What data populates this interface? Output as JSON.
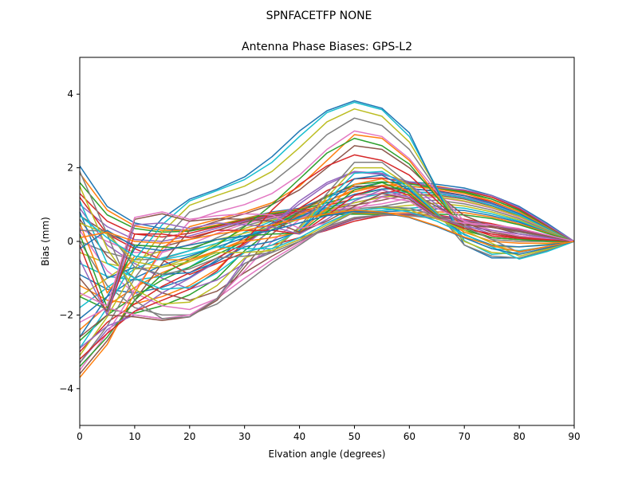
{
  "figure": {
    "suptitle": "SPNFACETFP      NONE"
  },
  "chart_data": {
    "type": "line",
    "title": "Antenna Phase Biases: GPS-L2",
    "xlabel": "Elvation angle (degrees)",
    "ylabel": "Bias (mm)",
    "xlim": [
      0,
      90
    ],
    "ylim": [
      -5,
      5
    ],
    "xticks": [
      0,
      10,
      20,
      30,
      40,
      50,
      60,
      70,
      80,
      90
    ],
    "yticks": [
      -4,
      -2,
      0,
      2,
      4
    ],
    "xtick_labels": [
      "0",
      "10",
      "20",
      "30",
      "40",
      "50",
      "60",
      "70",
      "80",
      "90"
    ],
    "ytick_labels": [
      "−4",
      "−2",
      "0",
      "2",
      "4"
    ],
    "grid": false,
    "legend": "none",
    "x": [
      0,
      5,
      10,
      15,
      20,
      25,
      30,
      35,
      40,
      45,
      50,
      55,
      60,
      65,
      70,
      75,
      80,
      85,
      90
    ],
    "series_colors": [
      "#1f77b4",
      "#ff7f0e",
      "#2ca02c",
      "#d62728",
      "#9467bd",
      "#8c564b",
      "#e377c2",
      "#7f7f7f",
      "#bcbd22",
      "#17becf"
    ],
    "series": [
      {
        "values": [
          2.05,
          0.95,
          0.5,
          0.35,
          0.3,
          0.42,
          0.62,
          0.8,
          0.9,
          1.2,
          1.45,
          1.6,
          1.62,
          1.55,
          1.45,
          1.25,
          0.95,
          0.5,
          0.0
        ]
      },
      {
        "values": [
          1.85,
          0.85,
          0.42,
          0.3,
          0.3,
          0.45,
          0.62,
          0.78,
          0.88,
          1.12,
          1.35,
          1.52,
          1.58,
          1.5,
          1.38,
          1.2,
          0.9,
          0.45,
          0.0
        ]
      },
      {
        "values": [
          1.6,
          0.72,
          0.35,
          0.25,
          0.28,
          0.42,
          0.6,
          0.75,
          0.86,
          1.05,
          1.25,
          1.42,
          1.5,
          1.45,
          1.32,
          1.15,
          0.85,
          0.42,
          0.0
        ]
      },
      {
        "values": [
          1.3,
          0.55,
          0.2,
          0.12,
          0.22,
          0.4,
          0.58,
          0.72,
          0.82,
          0.98,
          1.15,
          1.32,
          1.42,
          1.38,
          1.25,
          1.08,
          0.8,
          0.4,
          0.0
        ]
      },
      {
        "values": [
          1.0,
          0.4,
          0.05,
          0.0,
          0.15,
          0.36,
          0.55,
          0.7,
          0.8,
          0.92,
          1.05,
          1.22,
          1.35,
          1.32,
          1.2,
          1.02,
          0.75,
          0.38,
          0.0
        ]
      },
      {
        "values": [
          0.7,
          0.22,
          -0.1,
          -0.15,
          0.05,
          0.3,
          0.52,
          0.68,
          0.78,
          0.88,
          0.98,
          1.12,
          1.28,
          1.26,
          1.15,
          0.96,
          0.7,
          0.35,
          0.0
        ]
      },
      {
        "values": [
          0.35,
          0.0,
          -0.3,
          -0.3,
          -0.08,
          0.22,
          0.48,
          0.65,
          0.76,
          0.85,
          0.92,
          1.02,
          1.18,
          1.2,
          1.08,
          0.9,
          0.66,
          0.32,
          0.0
        ]
      },
      {
        "values": [
          0.0,
          -0.3,
          -0.5,
          -0.48,
          -0.25,
          0.1,
          0.42,
          0.62,
          0.74,
          0.82,
          0.88,
          0.95,
          1.08,
          1.12,
          1.02,
          0.85,
          0.62,
          0.3,
          0.0
        ]
      },
      {
        "values": [
          -0.3,
          -0.6,
          -0.75,
          -0.7,
          -0.45,
          -0.05,
          0.35,
          0.58,
          0.72,
          0.8,
          0.84,
          0.9,
          0.98,
          1.04,
          0.96,
          0.8,
          0.58,
          0.28,
          0.0
        ]
      },
      {
        "values": [
          -0.6,
          -0.95,
          -1.05,
          -0.95,
          -0.7,
          -0.25,
          0.25,
          0.55,
          0.7,
          0.78,
          0.8,
          0.84,
          0.9,
          0.96,
          0.9,
          0.75,
          0.55,
          0.26,
          0.0
        ]
      },
      {
        "values": [
          -0.9,
          -1.3,
          -1.4,
          -1.25,
          -0.98,
          -0.5,
          0.12,
          0.5,
          0.68,
          0.76,
          0.78,
          0.8,
          0.84,
          0.88,
          0.84,
          0.7,
          0.52,
          0.25,
          0.0
        ]
      },
      {
        "values": [
          -1.2,
          -1.6,
          -1.7,
          -1.5,
          -1.2,
          -0.75,
          -0.05,
          0.42,
          0.66,
          0.74,
          0.76,
          0.76,
          0.78,
          0.8,
          0.78,
          0.66,
          0.48,
          0.24,
          0.0
        ]
      },
      {
        "values": [
          -1.5,
          -1.85,
          -1.95,
          -1.75,
          -1.45,
          -1.0,
          -0.25,
          0.32,
          0.62,
          0.72,
          0.74,
          0.73,
          0.72,
          0.74,
          0.72,
          0.62,
          0.45,
          0.22,
          0.0
        ]
      },
      {
        "values": [
          1.2,
          0.2,
          -0.2,
          -0.5,
          -0.9,
          -0.6,
          -0.3,
          -0.1,
          0.1,
          0.3,
          0.55,
          0.7,
          0.75,
          0.72,
          0.6,
          0.48,
          0.32,
          0.16,
          0.0
        ]
      },
      {
        "values": [
          0.9,
          -0.1,
          -0.6,
          -1.0,
          -1.3,
          -1.05,
          -0.6,
          -0.25,
          0.05,
          0.32,
          0.6,
          0.72,
          0.74,
          0.7,
          0.58,
          0.45,
          0.3,
          0.15,
          0.0
        ]
      },
      {
        "values": [
          0.6,
          -0.4,
          -1.0,
          -1.4,
          -1.6,
          -1.35,
          -0.85,
          -0.4,
          0.0,
          0.35,
          0.62,
          0.72,
          0.72,
          0.68,
          0.55,
          0.42,
          0.28,
          0.14,
          0.0
        ]
      },
      {
        "values": [
          0.3,
          -0.8,
          -1.4,
          -1.75,
          -1.85,
          -1.55,
          -1.0,
          -0.5,
          -0.05,
          0.38,
          0.64,
          0.72,
          0.7,
          0.65,
          0.52,
          0.4,
          0.26,
          0.13,
          0.0
        ]
      },
      {
        "values": [
          0.0,
          -1.2,
          -1.8,
          -2.0,
          -2.0,
          -1.7,
          -1.15,
          -0.58,
          -0.1,
          0.4,
          0.65,
          0.72,
          0.7,
          0.62,
          0.5,
          0.38,
          0.25,
          0.12,
          0.0
        ]
      },
      {
        "values": [
          -1.5,
          -1.0,
          -0.5,
          -0.25,
          -0.1,
          0.05,
          0.22,
          0.4,
          0.6,
          0.85,
          1.05,
          1.2,
          1.28,
          1.22,
          1.1,
          0.92,
          0.68,
          0.34,
          0.0
        ]
      },
      {
        "values": [
          -1.8,
          -1.25,
          -0.75,
          -0.45,
          -0.25,
          -0.05,
          0.15,
          0.38,
          0.62,
          0.92,
          1.15,
          1.3,
          1.36,
          1.3,
          1.18,
          0.98,
          0.72,
          0.36,
          0.0
        ]
      },
      {
        "values": [
          -2.1,
          -1.5,
          -1.0,
          -0.65,
          -0.4,
          -0.15,
          0.1,
          0.38,
          0.66,
          1.0,
          1.28,
          1.42,
          1.44,
          1.36,
          1.24,
          1.04,
          0.76,
          0.38,
          0.0
        ]
      },
      {
        "values": [
          -2.4,
          -1.75,
          -1.25,
          -0.85,
          -0.55,
          -0.25,
          0.05,
          0.38,
          0.72,
          1.1,
          1.4,
          1.52,
          1.5,
          1.42,
          1.3,
          1.1,
          0.8,
          0.4,
          0.0
        ]
      },
      {
        "values": [
          -2.7,
          -2.0,
          -1.5,
          -1.05,
          -0.7,
          -0.35,
          0.0,
          0.4,
          0.8,
          1.22,
          1.55,
          1.62,
          1.56,
          1.46,
          1.35,
          1.15,
          0.84,
          0.42,
          0.0
        ]
      },
      {
        "values": [
          -3.0,
          -2.2,
          -1.7,
          -1.22,
          -0.85,
          -0.45,
          -0.05,
          0.42,
          0.9,
          1.38,
          1.7,
          1.72,
          1.6,
          1.48,
          1.38,
          1.2,
          0.88,
          0.44,
          0.0
        ]
      },
      {
        "values": [
          -3.3,
          -2.4,
          -1.9,
          -1.4,
          -1.0,
          -0.55,
          -0.1,
          0.45,
          1.02,
          1.55,
          1.88,
          1.82,
          1.62,
          1.46,
          1.4,
          1.24,
          0.92,
          0.46,
          0.0
        ]
      },
      {
        "values": [
          -3.6,
          -2.7,
          -1.6,
          -0.6,
          0.3,
          0.55,
          0.75,
          1.0,
          1.4,
          2.0,
          2.6,
          2.5,
          2.0,
          1.3,
          0.7,
          0.4,
          0.2,
          0.1,
          0.0
        ]
      },
      {
        "values": [
          -3.5,
          -2.5,
          -1.3,
          -0.3,
          0.55,
          0.8,
          1.0,
          1.3,
          1.8,
          2.5,
          3.0,
          2.85,
          2.25,
          1.35,
          0.55,
          0.25,
          0.12,
          0.06,
          0.0
        ]
      },
      {
        "values": [
          -3.3,
          -2.3,
          -1.0,
          0.0,
          0.8,
          1.05,
          1.28,
          1.6,
          2.2,
          2.9,
          3.35,
          3.15,
          2.5,
          1.4,
          0.4,
          0.05,
          0.0,
          0.0,
          0.0
        ]
      },
      {
        "values": [
          -3.1,
          -2.05,
          -0.75,
          0.25,
          0.98,
          1.25,
          1.5,
          1.9,
          2.55,
          3.25,
          3.6,
          3.4,
          2.7,
          1.45,
          0.2,
          -0.15,
          -0.15,
          -0.08,
          0.0
        ]
      },
      {
        "values": [
          -2.9,
          -1.8,
          -0.5,
          0.45,
          1.1,
          1.38,
          1.68,
          2.15,
          2.85,
          3.5,
          3.78,
          3.58,
          2.85,
          1.45,
          0.02,
          -0.35,
          -0.3,
          -0.15,
          0.0
        ]
      },
      {
        "values": [
          -2.6,
          -1.5,
          -0.2,
          0.62,
          1.15,
          1.42,
          1.75,
          2.3,
          3.0,
          3.55,
          3.82,
          3.62,
          2.95,
          1.4,
          -0.1,
          -0.45,
          -0.45,
          -0.25,
          0.0
        ]
      },
      {
        "values": [
          -3.7,
          -2.8,
          -1.4,
          -0.2,
          0.4,
          0.6,
          0.8,
          1.05,
          1.5,
          2.2,
          2.9,
          2.8,
          2.2,
          1.25,
          0.3,
          0.1,
          0.05,
          0.02,
          0.0
        ]
      },
      {
        "values": [
          -3.4,
          -2.6,
          -1.6,
          -0.9,
          -0.5,
          -0.1,
          0.4,
          1.0,
          1.7,
          2.4,
          2.8,
          2.6,
          2.1,
          1.2,
          0.35,
          0.1,
          0.05,
          0.02,
          0.0
        ]
      },
      {
        "values": [
          -3.2,
          -2.5,
          -1.9,
          -1.6,
          -1.3,
          -0.8,
          0.0,
          0.85,
          1.55,
          2.05,
          2.35,
          2.2,
          1.8,
          1.1,
          0.4,
          0.15,
          0.08,
          0.04,
          0.0
        ]
      },
      {
        "values": [
          -2.9,
          -2.3,
          -2.0,
          -2.1,
          -2.05,
          -1.55,
          -0.5,
          0.45,
          1.1,
          1.6,
          1.9,
          1.85,
          1.55,
          1.0,
          0.45,
          0.2,
          0.1,
          0.05,
          0.0
        ]
      },
      {
        "values": [
          -2.6,
          -2.0,
          -2.05,
          -2.15,
          -2.05,
          -1.6,
          -0.7,
          0.2,
          0.8,
          1.25,
          1.5,
          1.5,
          1.35,
          0.95,
          0.5,
          0.25,
          0.12,
          0.06,
          0.0
        ]
      },
      {
        "values": [
          -2.2,
          -1.8,
          -2.0,
          -2.1,
          -2.0,
          -1.55,
          -0.8,
          0.0,
          0.6,
          1.0,
          1.25,
          1.3,
          1.2,
          0.9,
          0.55,
          0.3,
          0.15,
          0.08,
          0.0
        ]
      },
      {
        "values": [
          1.9,
          0.2,
          -1.6,
          -2.1,
          -2.05,
          -1.55,
          -0.6,
          -0.3,
          0.4,
          1.3,
          2.15,
          2.15,
          1.55,
          0.8,
          -0.1,
          -0.4,
          -0.45,
          -0.25,
          0.0
        ]
      },
      {
        "values": [
          1.5,
          -0.2,
          -1.3,
          -1.7,
          -1.65,
          -1.2,
          -0.45,
          -0.2,
          0.35,
          1.2,
          2.0,
          2.0,
          1.5,
          0.78,
          0.0,
          -0.3,
          -0.35,
          -0.2,
          0.0
        ]
      },
      {
        "values": [
          1.1,
          -0.6,
          -1.0,
          -1.3,
          -1.25,
          -0.85,
          -0.3,
          -0.1,
          0.3,
          1.1,
          1.85,
          1.9,
          1.45,
          0.75,
          0.1,
          -0.2,
          -0.25,
          -0.15,
          0.0
        ]
      },
      {
        "values": [
          0.8,
          -1.0,
          -0.7,
          -0.9,
          -0.85,
          -0.55,
          -0.15,
          0.0,
          0.28,
          1.0,
          1.7,
          1.8,
          1.4,
          0.72,
          0.18,
          -0.1,
          -0.15,
          -0.1,
          0.0
        ]
      },
      {
        "values": [
          0.5,
          -1.4,
          -0.4,
          -0.5,
          -0.5,
          -0.25,
          0.0,
          0.1,
          0.25,
          0.9,
          1.55,
          1.7,
          1.35,
          0.7,
          0.25,
          0.0,
          -0.05,
          -0.05,
          0.0
        ]
      },
      {
        "values": [
          0.2,
          -1.8,
          -0.1,
          -0.15,
          -0.2,
          0.05,
          0.15,
          0.2,
          0.22,
          0.8,
          1.4,
          1.6,
          1.3,
          0.68,
          0.3,
          0.1,
          0.05,
          0.0,
          0.0
        ]
      },
      {
        "values": [
          -0.1,
          -2.0,
          0.2,
          0.2,
          0.1,
          0.3,
          0.3,
          0.3,
          0.2,
          0.7,
          1.25,
          1.5,
          1.25,
          0.66,
          0.35,
          0.2,
          0.1,
          0.05,
          0.0
        ]
      },
      {
        "values": [
          -0.5,
          -2.0,
          0.45,
          0.5,
          0.35,
          0.5,
          0.45,
          0.4,
          0.2,
          0.6,
          1.1,
          1.4,
          1.2,
          0.64,
          0.4,
          0.3,
          0.2,
          0.1,
          0.0
        ]
      },
      {
        "values": [
          -1.0,
          -1.9,
          0.6,
          0.75,
          0.55,
          0.62,
          0.6,
          0.55,
          0.25,
          0.55,
          0.95,
          1.3,
          1.15,
          0.62,
          0.45,
          0.38,
          0.28,
          0.14,
          0.0
        ]
      },
      {
        "values": [
          -1.4,
          -1.75,
          0.65,
          0.8,
          0.6,
          0.7,
          0.75,
          0.72,
          0.35,
          0.5,
          0.85,
          1.2,
          1.1,
          0.6,
          0.5,
          0.45,
          0.35,
          0.18,
          0.0
        ]
      },
      {
        "values": [
          0.3,
          0.28,
          -0.7,
          -0.9,
          -0.75,
          -0.45,
          -0.4,
          -0.3,
          0.0,
          0.4,
          0.8,
          0.95,
          0.9,
          0.7,
          0.4,
          0.05,
          -0.3,
          -0.15,
          0.0
        ]
      },
      {
        "values": [
          0.5,
          0.2,
          -0.55,
          -0.7,
          -0.55,
          -0.3,
          -0.3,
          -0.25,
          0.05,
          0.45,
          0.82,
          0.92,
          0.85,
          0.62,
          0.3,
          -0.05,
          -0.4,
          -0.22,
          0.0
        ]
      },
      {
        "values": [
          0.7,
          0.1,
          -0.4,
          -0.5,
          -0.35,
          -0.15,
          -0.2,
          -0.2,
          0.1,
          0.5,
          0.84,
          0.9,
          0.8,
          0.55,
          0.2,
          -0.15,
          -0.48,
          -0.28,
          0.0
        ]
      },
      {
        "values": [
          -0.2,
          0.3,
          -0.15,
          -0.25,
          -0.1,
          0.05,
          0.15,
          0.3,
          0.5,
          0.7,
          0.82,
          0.78,
          0.65,
          0.4,
          0.1,
          -0.2,
          -0.35,
          -0.18,
          0.0
        ]
      },
      {
        "values": [
          0.1,
          0.25,
          0.0,
          -0.05,
          0.05,
          0.2,
          0.3,
          0.45,
          0.6,
          0.75,
          0.85,
          0.8,
          0.66,
          0.42,
          0.12,
          -0.12,
          -0.28,
          -0.14,
          0.0
        ]
      }
    ]
  }
}
